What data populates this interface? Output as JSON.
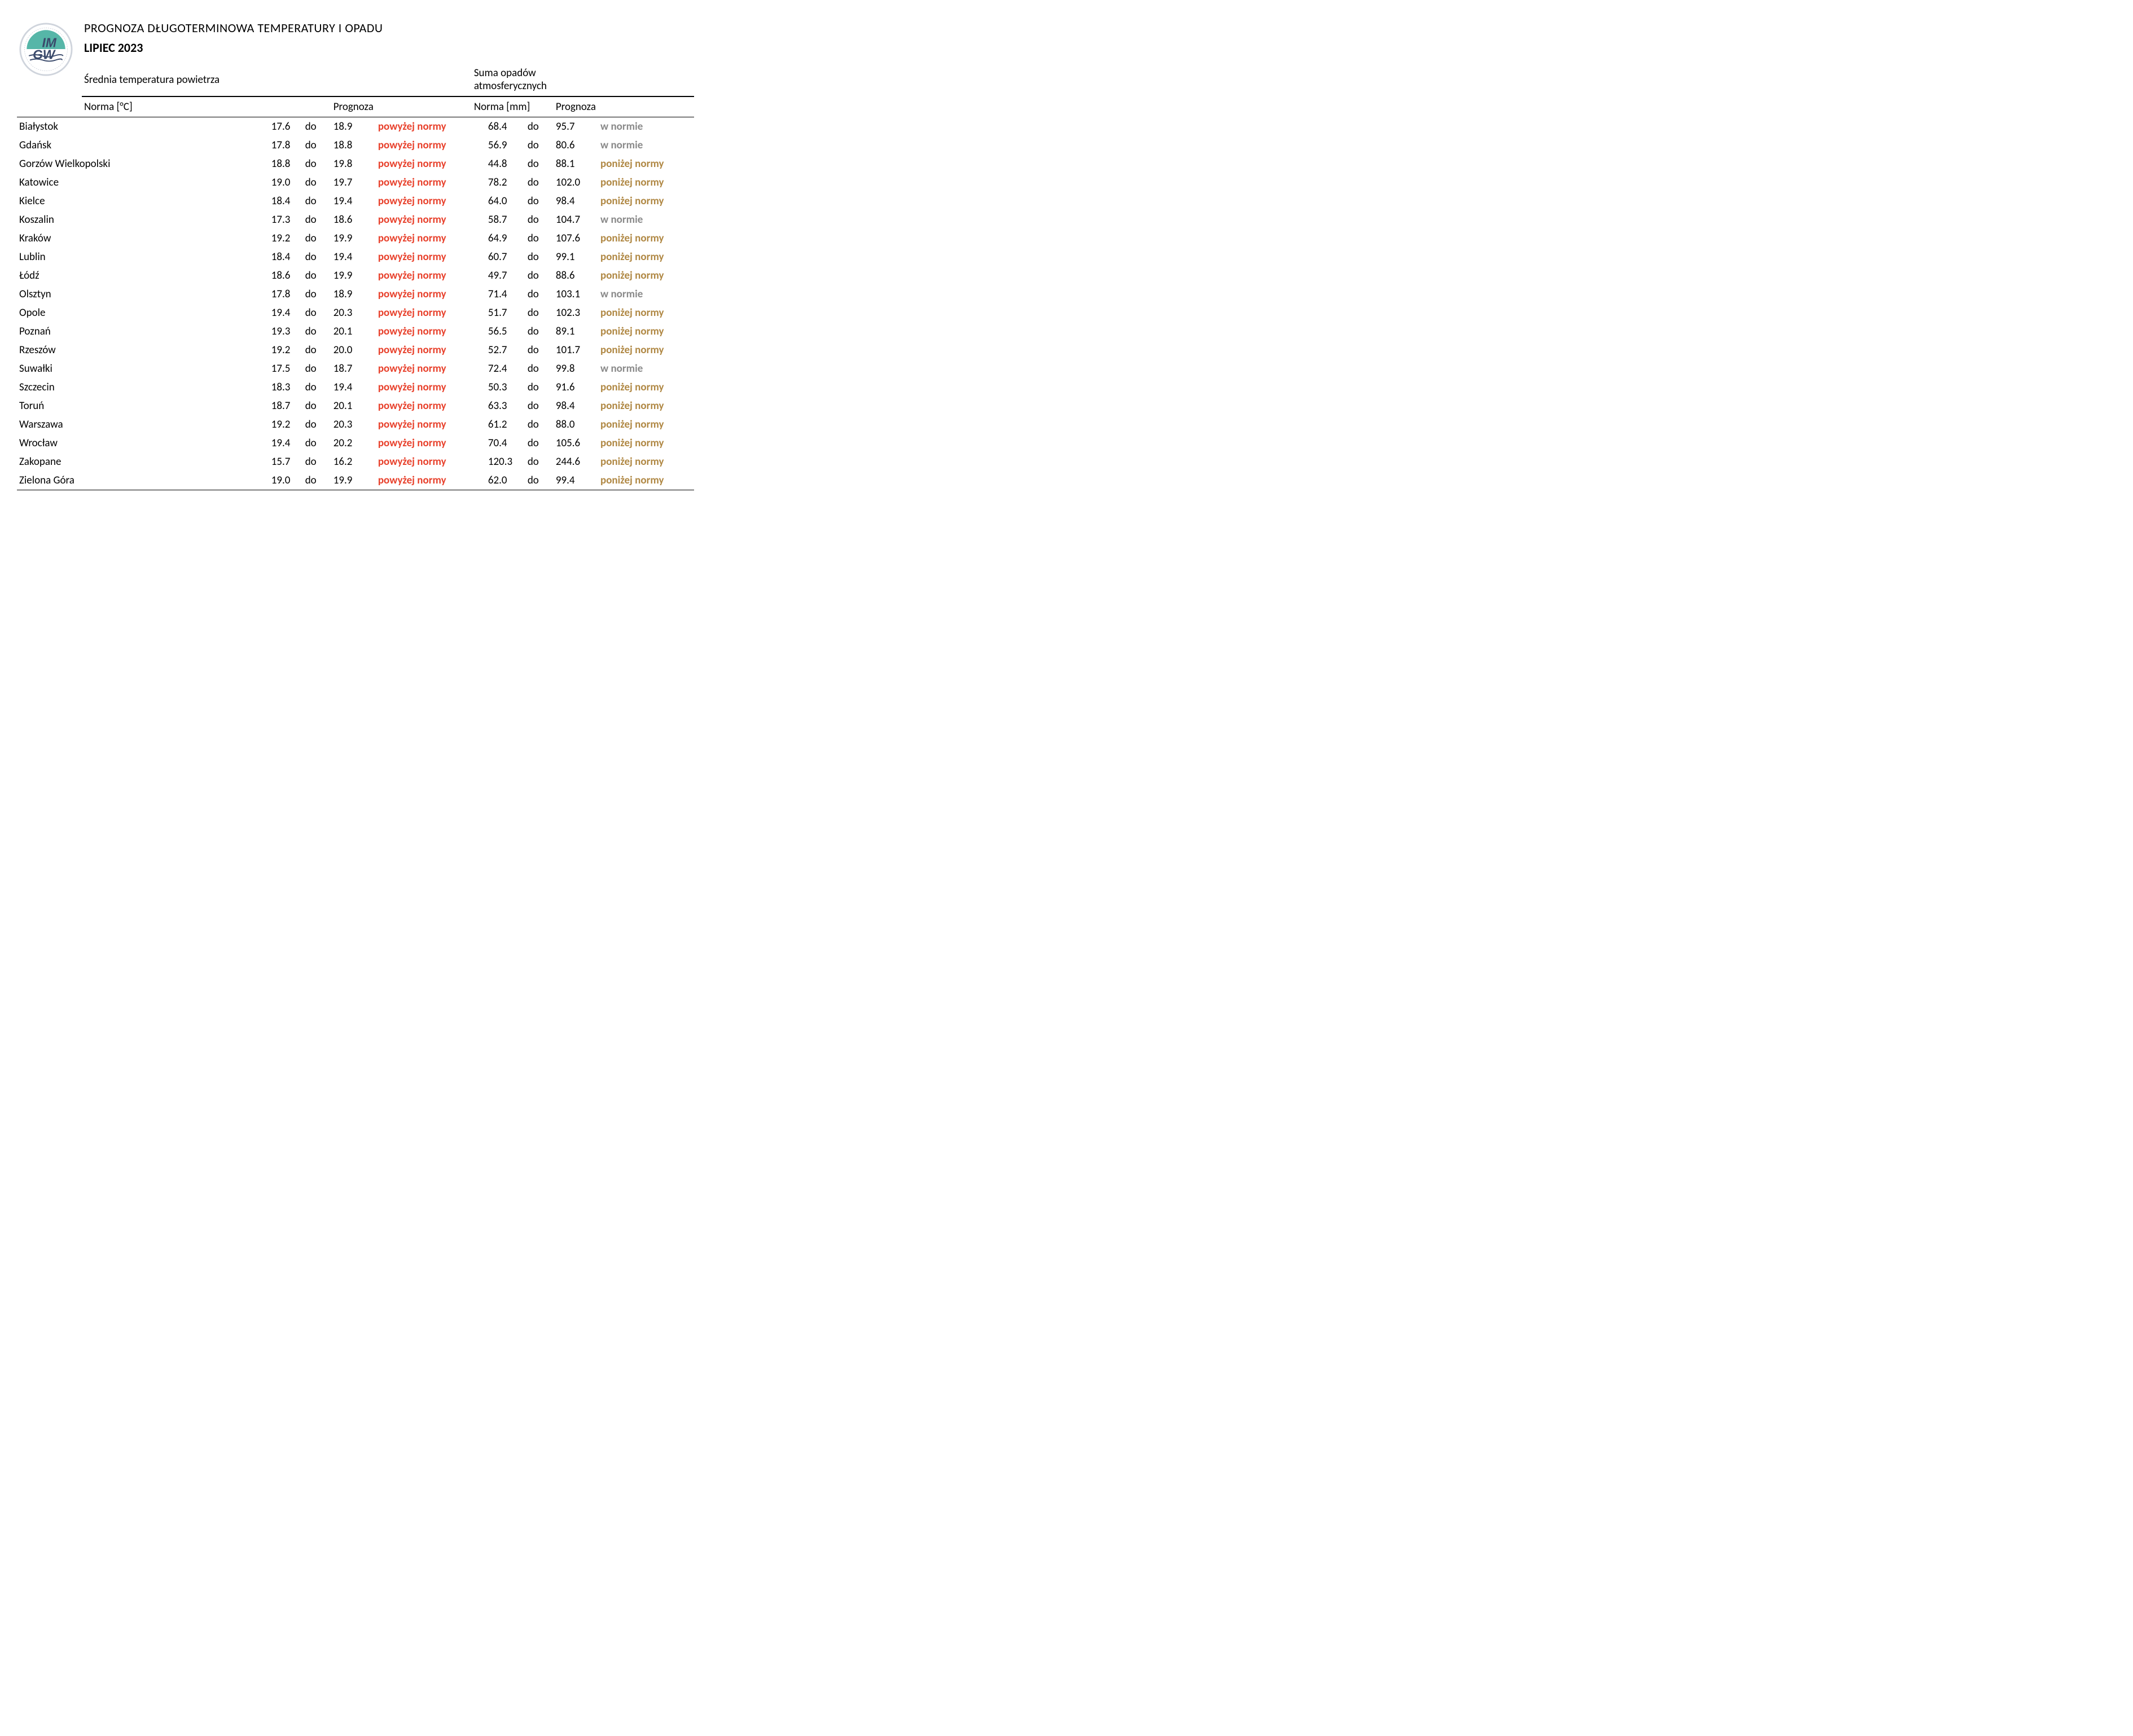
{
  "title": "PROGNOZA DŁUGOTERMINOWA TEMPERATURY I OPADU",
  "subtitle": "LIPIEC 2023",
  "section_temp": "Średnia temperatura powietrza",
  "section_precip": "Suma opadów atmosferycznych",
  "col_norma_temp": "Norma [°C]",
  "col_norma_precip": "Norma [mm]",
  "col_prognoza": "Prognoza",
  "word_do": "do",
  "prognosis_labels": {
    "above": "powyżej normy",
    "normal": "w normie",
    "below": "poniżej normy"
  },
  "prognosis_colors": {
    "above": "#e8412c",
    "normal": "#8a8a8a",
    "below": "#b08844"
  },
  "logo_text_top": "IM",
  "logo_text_bottom": "GW",
  "logo_colors": {
    "outer": "#cfd4dc",
    "circle": "#56b6a8",
    "text": "#3a4a6b"
  },
  "rows": [
    {
      "city": "Białystok",
      "t_lo": "17.6",
      "t_hi": "18.9",
      "t_prog": "above",
      "p_lo": "68.4",
      "p_hi": "95.7",
      "p_prog": "normal"
    },
    {
      "city": "Gdańsk",
      "t_lo": "17.8",
      "t_hi": "18.8",
      "t_prog": "above",
      "p_lo": "56.9",
      "p_hi": "80.6",
      "p_prog": "normal"
    },
    {
      "city": "Gorzów Wielkopolski",
      "t_lo": "18.8",
      "t_hi": "19.8",
      "t_prog": "above",
      "p_lo": "44.8",
      "p_hi": "88.1",
      "p_prog": "below"
    },
    {
      "city": "Katowice",
      "t_lo": "19.0",
      "t_hi": "19.7",
      "t_prog": "above",
      "p_lo": "78.2",
      "p_hi": "102.0",
      "p_prog": "below"
    },
    {
      "city": "Kielce",
      "t_lo": "18.4",
      "t_hi": "19.4",
      "t_prog": "above",
      "p_lo": "64.0",
      "p_hi": "98.4",
      "p_prog": "below"
    },
    {
      "city": "Koszalin",
      "t_lo": "17.3",
      "t_hi": "18.6",
      "t_prog": "above",
      "p_lo": "58.7",
      "p_hi": "104.7",
      "p_prog": "normal"
    },
    {
      "city": "Kraków",
      "t_lo": "19.2",
      "t_hi": "19.9",
      "t_prog": "above",
      "p_lo": "64.9",
      "p_hi": "107.6",
      "p_prog": "below"
    },
    {
      "city": "Lublin",
      "t_lo": "18.4",
      "t_hi": "19.4",
      "t_prog": "above",
      "p_lo": "60.7",
      "p_hi": "99.1",
      "p_prog": "below"
    },
    {
      "city": "Łódź",
      "t_lo": "18.6",
      "t_hi": "19.9",
      "t_prog": "above",
      "p_lo": "49.7",
      "p_hi": "88.6",
      "p_prog": "below"
    },
    {
      "city": "Olsztyn",
      "t_lo": "17.8",
      "t_hi": "18.9",
      "t_prog": "above",
      "p_lo": "71.4",
      "p_hi": "103.1",
      "p_prog": "normal"
    },
    {
      "city": "Opole",
      "t_lo": "19.4",
      "t_hi": "20.3",
      "t_prog": "above",
      "p_lo": "51.7",
      "p_hi": "102.3",
      "p_prog": "below"
    },
    {
      "city": "Poznań",
      "t_lo": "19.3",
      "t_hi": "20.1",
      "t_prog": "above",
      "p_lo": "56.5",
      "p_hi": "89.1",
      "p_prog": "below"
    },
    {
      "city": "Rzeszów",
      "t_lo": "19.2",
      "t_hi": "20.0",
      "t_prog": "above",
      "p_lo": "52.7",
      "p_hi": "101.7",
      "p_prog": "below"
    },
    {
      "city": "Suwałki",
      "t_lo": "17.5",
      "t_hi": "18.7",
      "t_prog": "above",
      "p_lo": "72.4",
      "p_hi": "99.8",
      "p_prog": "normal"
    },
    {
      "city": "Szczecin",
      "t_lo": "18.3",
      "t_hi": "19.4",
      "t_prog": "above",
      "p_lo": "50.3",
      "p_hi": "91.6",
      "p_prog": "below"
    },
    {
      "city": "Toruń",
      "t_lo": "18.7",
      "t_hi": "20.1",
      "t_prog": "above",
      "p_lo": "63.3",
      "p_hi": "98.4",
      "p_prog": "below"
    },
    {
      "city": "Warszawa",
      "t_lo": "19.2",
      "t_hi": "20.3",
      "t_prog": "above",
      "p_lo": "61.2",
      "p_hi": "88.0",
      "p_prog": "below"
    },
    {
      "city": "Wrocław",
      "t_lo": "19.4",
      "t_hi": "20.2",
      "t_prog": "above",
      "p_lo": "70.4",
      "p_hi": "105.6",
      "p_prog": "below"
    },
    {
      "city": "Zakopane",
      "t_lo": "15.7",
      "t_hi": "16.2",
      "t_prog": "above",
      "p_lo": "120.3",
      "p_hi": "244.6",
      "p_prog": "below"
    },
    {
      "city": "Zielona Góra",
      "t_lo": "19.0",
      "t_hi": "19.9",
      "t_prog": "above",
      "p_lo": "62.0",
      "p_hi": "99.4",
      "p_prog": "below"
    }
  ]
}
